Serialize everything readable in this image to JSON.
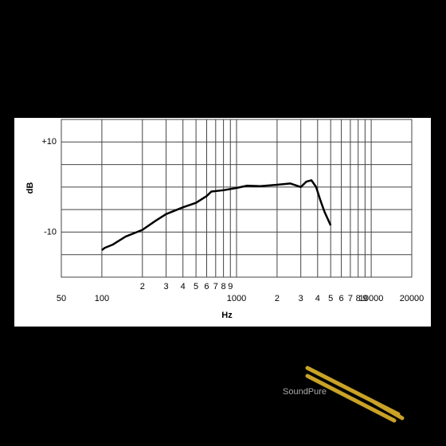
{
  "chart_data": {
    "type": "line",
    "x_scale": "log",
    "xlabel": "Hz",
    "ylabel": "dB",
    "xlim": [
      50,
      20000
    ],
    "ylim": [
      -20,
      15
    ],
    "xticks": [
      50,
      100,
      {
        "value": 200,
        "label": "2"
      },
      {
        "value": 300,
        "label": "3"
      },
      {
        "value": 400,
        "label": "4"
      },
      {
        "value": 500,
        "label": "5"
      },
      {
        "value": 600,
        "label": "6"
      },
      {
        "value": 700,
        "label": "7"
      },
      {
        "value": 800,
        "label": "8"
      },
      {
        "value": 900,
        "label": "9"
      },
      1000,
      {
        "value": 2000,
        "label": "2"
      },
      {
        "value": 3000,
        "label": "3"
      },
      {
        "value": 4000,
        "label": "4"
      },
      {
        "value": 5000,
        "label": "5"
      },
      {
        "value": 6000,
        "label": "6"
      },
      {
        "value": 7000,
        "label": "7"
      },
      {
        "value": 8000,
        "label": "8"
      },
      {
        "value": 9000,
        "label": "9"
      },
      10000,
      20000
    ],
    "yticks": [
      -20,
      -15,
      {
        "value": -10,
        "label": "-10"
      },
      -5,
      0,
      5,
      {
        "value": 10,
        "label": "+10"
      },
      15
    ],
    "grid": true,
    "series": [
      {
        "color": "#000000",
        "x": [
          100,
          105,
          120,
          150,
          200,
          250,
          300,
          400,
          500,
          600,
          650,
          800,
          1000,
          1200,
          1500,
          2000,
          2500,
          3000,
          3300,
          3600,
          3900,
          4200,
          4500,
          5000
        ],
        "values": [
          -14,
          -13.5,
          -12.8,
          -11,
          -9.5,
          -7.5,
          -6,
          -4.5,
          -3.5,
          -2,
          -1,
          -0.7,
          -0.2,
          0.3,
          0.2,
          0.5,
          0.8,
          0,
          1.2,
          1.5,
          0,
          -3,
          -5.5,
          -8.5
        ]
      }
    ]
  },
  "logo": "SoundPure"
}
